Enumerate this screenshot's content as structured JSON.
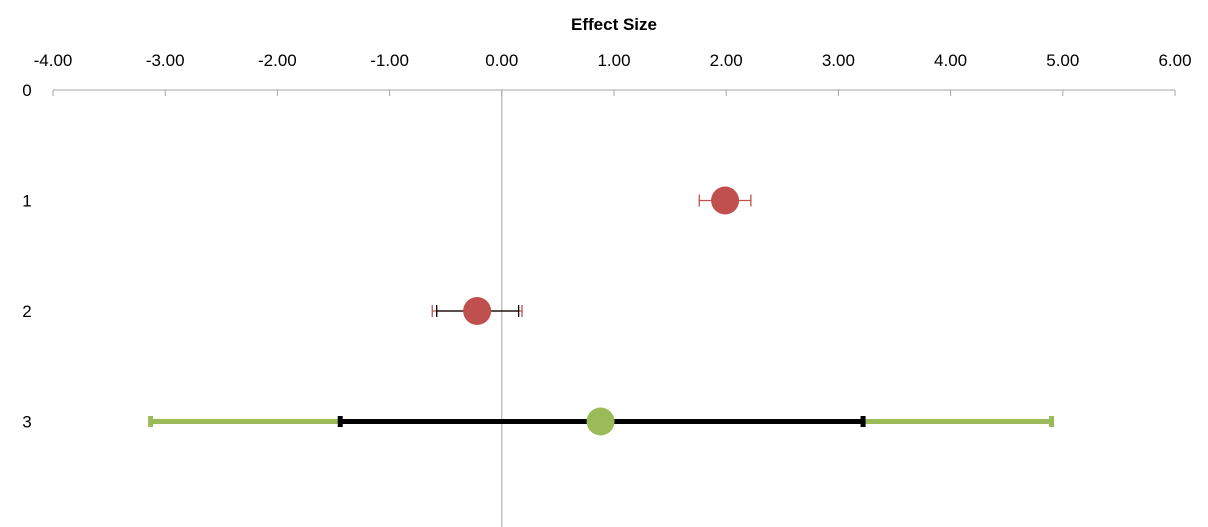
{
  "chart_data": {
    "type": "scatter",
    "title": "Effect Size",
    "xlabel": "",
    "ylabel": "",
    "xlim": [
      -4.0,
      6.0
    ],
    "ylim": [
      0,
      3
    ],
    "x_ticks": [
      "-4.00",
      "-3.00",
      "-2.00",
      "-1.00",
      "0.00",
      "1.00",
      "2.00",
      "3.00",
      "4.00",
      "5.00",
      "6.00"
    ],
    "x_tick_values": [
      -4,
      -3,
      -2,
      -1,
      0,
      1,
      2,
      3,
      4,
      5,
      6
    ],
    "y_ticks": [
      "0",
      "1",
      "2",
      "3"
    ],
    "y_tick_values": [
      0,
      1,
      2,
      3
    ],
    "axis_position": "top",
    "grid": false,
    "legend": "none",
    "series": [
      {
        "color": "#c0504d",
        "points": [
          {
            "y": 1,
            "x": 1.99,
            "error_bars": [
              {
                "low": 1.76,
                "high": 2.22,
                "color": "#c0504d",
                "width": "thin"
              }
            ]
          },
          {
            "y": 2,
            "x": -0.22,
            "error_bars": [
              {
                "low": -0.62,
                "high": 0.18,
                "color": "#c0504d",
                "width": "thin"
              },
              {
                "low": -0.58,
                "high": 0.15,
                "color": "#000000",
                "width": "thin"
              }
            ]
          }
        ]
      },
      {
        "color": "#9bbb59",
        "points": [
          {
            "y": 3,
            "x": 0.88,
            "error_bars": [
              {
                "low": -3.13,
                "high": 4.9,
                "color": "#9bbb59",
                "width": "thick"
              },
              {
                "low": -1.44,
                "high": 3.22,
                "color": "#000000",
                "width": "thick"
              }
            ]
          }
        ]
      }
    ]
  }
}
